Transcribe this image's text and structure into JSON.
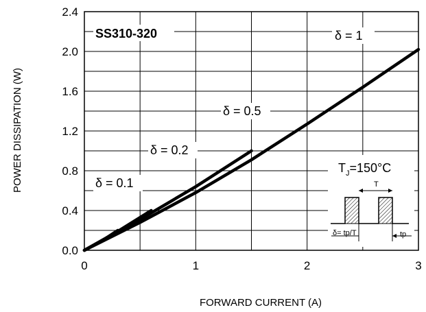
{
  "chart_data": {
    "type": "line",
    "title": "SS310-320",
    "xlabel": "FORWARD CURRENT (A)",
    "ylabel": "POWER DISSIPATION (W)",
    "xlim": [
      0,
      3
    ],
    "ylim": [
      0,
      2.4
    ],
    "xticks": [
      0,
      1,
      2,
      3
    ],
    "yticks": [
      0.0,
      0.4,
      0.8,
      1.2,
      1.6,
      2.0,
      2.4
    ],
    "xtick_labels": [
      "0",
      "1",
      "2",
      "3"
    ],
    "ytick_labels": [
      "0.0",
      "0.4",
      "0.8",
      "1.2",
      "1.6",
      "2.0",
      "2.4"
    ],
    "grid": true,
    "series": [
      {
        "name": "δ = 1",
        "x": [
          0,
          0.5,
          1.0,
          1.5,
          2.0,
          2.5,
          3.0
        ],
        "y": [
          0,
          0.28,
          0.58,
          0.91,
          1.27,
          1.64,
          2.02
        ]
      },
      {
        "name": "δ = 0.5",
        "x": [
          0,
          0.5,
          1.0,
          1.5
        ],
        "y": [
          0,
          0.31,
          0.64,
          1.0
        ]
      },
      {
        "name": "δ = 0.2",
        "x": [
          0,
          0.3,
          0.6
        ],
        "y": [
          0,
          0.19,
          0.4
        ]
      },
      {
        "name": "δ = 0.1",
        "x": [
          0,
          0.15,
          0.3
        ],
        "y": [
          0,
          0.09,
          0.2
        ]
      }
    ],
    "annotations": {
      "temperature_label": "TJ=150°C",
      "tj_main": "T",
      "tj_sub": "J",
      "tj_rest": "=150°C",
      "inset_period": "T",
      "inset_duty": "δ= tp/T",
      "inset_tp": "tp"
    }
  }
}
